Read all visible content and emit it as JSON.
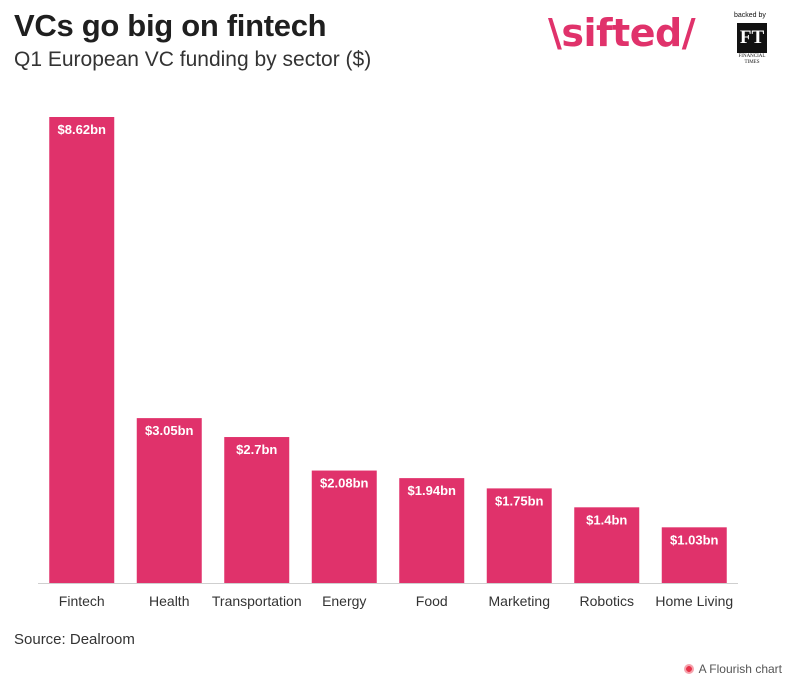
{
  "header": {
    "title": "VCs go big on fintech",
    "subtitle": "Q1 European VC funding by sector ($)"
  },
  "logo": {
    "brand": "\\sifted/",
    "backed_by": "backed by",
    "ft_mark": "FT",
    "ft_name": "FINANCIAL TIMES"
  },
  "footer": {
    "source": "Source: Dealroom",
    "credit": "A Flourish chart"
  },
  "colors": {
    "bar": "#e0326b",
    "label": "#ffffff",
    "axis": "#cfcfcf"
  },
  "chart_data": {
    "type": "bar",
    "categories": [
      "Fintech",
      "Health",
      "Transportation",
      "Energy",
      "Food",
      "Marketing",
      "Robotics",
      "Home Living"
    ],
    "values": [
      8.62,
      3.05,
      2.7,
      2.08,
      1.94,
      1.75,
      1.4,
      1.03
    ],
    "data_labels": [
      "$8.62bn",
      "$3.05bn",
      "$2.7bn",
      "$2.08bn",
      "$1.94bn",
      "$1.75bn",
      "$1.4bn",
      "$1.03bn"
    ],
    "title": "VCs go big on fintech",
    "subtitle": "Q1 European VC funding by sector ($)",
    "xlabel": "",
    "ylabel": "",
    "ylim": [
      0,
      8.62
    ],
    "grid": false,
    "legend": "none"
  }
}
